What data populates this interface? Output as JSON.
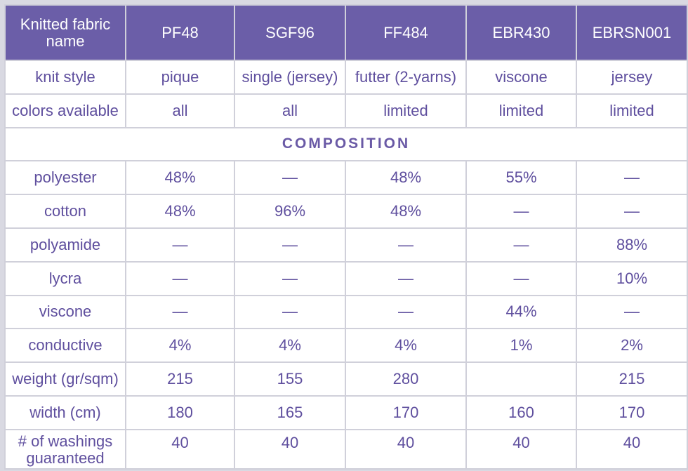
{
  "header": {
    "name_label": "Knitted fabric name",
    "fabrics": [
      "PF48",
      "SGF96",
      "FF484",
      "EBR430",
      "EBRSN001"
    ]
  },
  "rows_top": [
    {
      "label": "knit style",
      "values": [
        "pique",
        "single (jersey)",
        "futter (2-yarns)",
        "viscone",
        "jersey"
      ]
    },
    {
      "label": "colors available",
      "values": [
        "all",
        "all",
        "limited",
        "limited",
        "limited"
      ]
    }
  ],
  "section": {
    "title": "COMPOSITION"
  },
  "rows_composition": [
    {
      "label": "polyester",
      "values": [
        "48%",
        "—",
        "48%",
        "55%",
        "—"
      ]
    },
    {
      "label": "cotton",
      "values": [
        "48%",
        "96%",
        "48%",
        "—",
        "—"
      ]
    },
    {
      "label": "polyamide",
      "values": [
        "—",
        "—",
        "—",
        "—",
        "88%"
      ]
    },
    {
      "label": "lycra",
      "values": [
        "—",
        "—",
        "—",
        "—",
        "10%"
      ]
    },
    {
      "label": "viscone",
      "values": [
        "—",
        "—",
        "—",
        "44%",
        "—"
      ]
    },
    {
      "label": "conductive",
      "values": [
        "4%",
        "4%",
        "4%",
        "1%",
        "2%"
      ]
    },
    {
      "label": "weight (gr/sqm)",
      "values": [
        "215",
        "155",
        "280",
        "",
        "215"
      ]
    },
    {
      "label": "width (cm)",
      "values": [
        "180",
        "165",
        "170",
        "160",
        "170"
      ]
    },
    {
      "label": "# of washings guaranteed",
      "values": [
        "40",
        "40",
        "40",
        "40",
        "40"
      ]
    }
  ],
  "colors": {
    "header_bg": "#6b5ea8",
    "text": "#5f4f9e",
    "border": "#d0d0da"
  }
}
